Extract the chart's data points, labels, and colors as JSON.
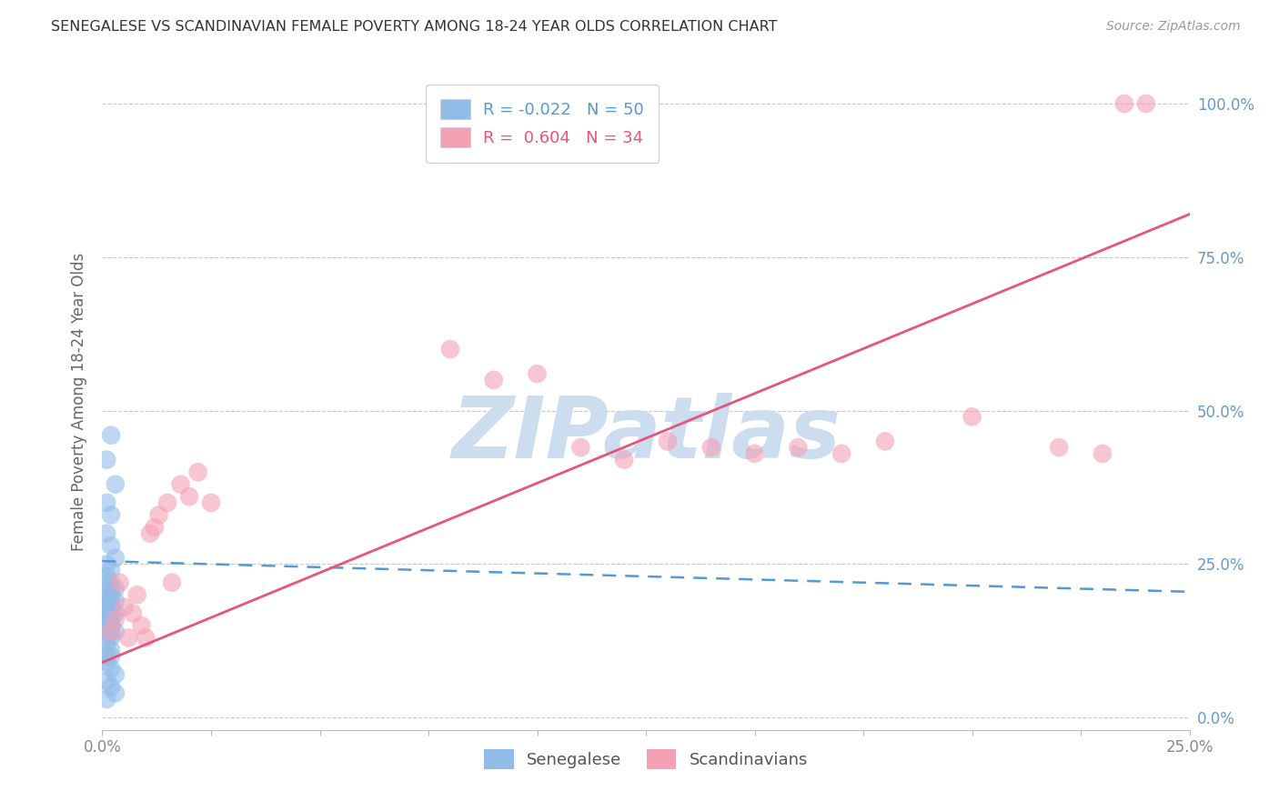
{
  "title": "SENEGALESE VS SCANDINAVIAN FEMALE POVERTY AMONG 18-24 YEAR OLDS CORRELATION CHART",
  "source": "Source: ZipAtlas.com",
  "ylabel": "Female Poverty Among 18-24 Year Olds",
  "xlim": [
    0.0,
    0.25
  ],
  "ylim": [
    -0.02,
    1.05
  ],
  "ytick_positions": [
    0.0,
    0.25,
    0.5,
    0.75,
    1.0
  ],
  "xtick_positions": [
    0.0,
    0.025,
    0.05,
    0.075,
    0.1,
    0.125,
    0.15,
    0.175,
    0.2,
    0.225,
    0.25
  ],
  "blue_scatter_color": "#92bce8",
  "pink_scatter_color": "#f4a0b5",
  "blue_line_color": "#5599d4",
  "pink_line_color": "#e8547a",
  "background_color": "#ffffff",
  "grid_color": "#c8c8c8",
  "axis_label_color": "#666666",
  "right_axis_color": "#6699cc",
  "watermark_text": "ZIPatlas",
  "watermark_color": "#ccddf0",
  "blue_line_x0": 0.0,
  "blue_line_y0": 0.255,
  "blue_line_x1": 0.25,
  "blue_line_y1": 0.205,
  "pink_line_x0": 0.0,
  "pink_line_y0": 0.09,
  "pink_line_x1": 0.25,
  "pink_line_y1": 0.82,
  "senegalese_x": [
    0.002,
    0.001,
    0.003,
    0.001,
    0.002,
    0.001,
    0.002,
    0.003,
    0.001,
    0.002,
    0.001,
    0.002,
    0.001,
    0.002,
    0.003,
    0.001,
    0.002,
    0.001,
    0.003,
    0.002,
    0.001,
    0.002,
    0.001,
    0.002,
    0.001,
    0.002,
    0.003,
    0.002,
    0.001,
    0.002,
    0.001,
    0.002,
    0.001,
    0.002,
    0.001,
    0.002,
    0.003,
    0.001,
    0.002,
    0.001,
    0.002,
    0.001,
    0.002,
    0.001,
    0.002,
    0.003,
    0.001,
    0.002,
    0.003,
    0.001
  ],
  "senegalese_y": [
    0.46,
    0.42,
    0.38,
    0.35,
    0.33,
    0.3,
    0.28,
    0.26,
    0.25,
    0.24,
    0.23,
    0.22,
    0.22,
    0.21,
    0.21,
    0.2,
    0.2,
    0.19,
    0.19,
    0.19,
    0.18,
    0.18,
    0.18,
    0.18,
    0.17,
    0.17,
    0.17,
    0.17,
    0.16,
    0.16,
    0.16,
    0.15,
    0.15,
    0.15,
    0.14,
    0.14,
    0.14,
    0.13,
    0.13,
    0.12,
    0.11,
    0.1,
    0.1,
    0.09,
    0.08,
    0.07,
    0.06,
    0.05,
    0.04,
    0.03
  ],
  "scandinavian_x": [
    0.002,
    0.003,
    0.004,
    0.005,
    0.006,
    0.007,
    0.008,
    0.009,
    0.01,
    0.011,
    0.012,
    0.013,
    0.015,
    0.016,
    0.018,
    0.02,
    0.022,
    0.025,
    0.08,
    0.09,
    0.1,
    0.11,
    0.12,
    0.13,
    0.14,
    0.15,
    0.16,
    0.17,
    0.18,
    0.2,
    0.22,
    0.23,
    0.235,
    0.24
  ],
  "scandinavian_y": [
    0.14,
    0.16,
    0.22,
    0.18,
    0.13,
    0.17,
    0.2,
    0.15,
    0.13,
    0.3,
    0.31,
    0.33,
    0.35,
    0.22,
    0.38,
    0.36,
    0.4,
    0.35,
    0.6,
    0.55,
    0.56,
    0.44,
    0.42,
    0.45,
    0.44,
    0.43,
    0.44,
    0.43,
    0.45,
    0.49,
    0.44,
    0.43,
    1.0,
    1.0
  ],
  "legend_blue_label": "R = -0.022   N = 50",
  "legend_pink_label": "R =  0.604   N = 34"
}
